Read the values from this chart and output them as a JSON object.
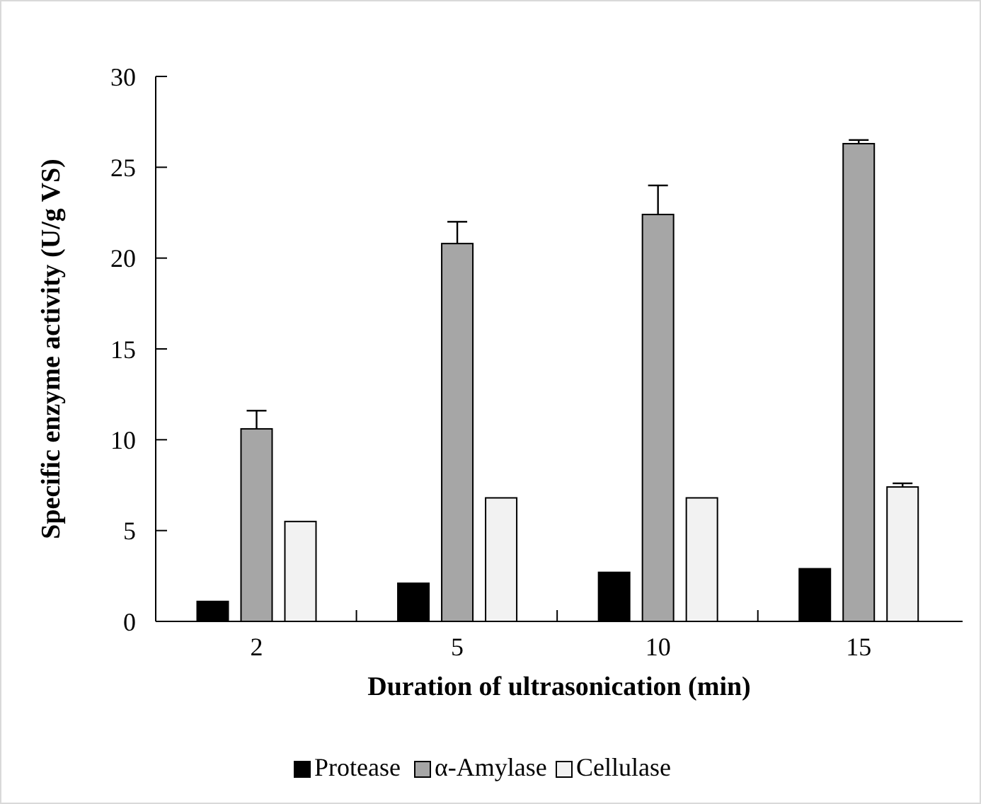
{
  "chart_data": {
    "type": "bar",
    "xlabel": "Duration of ultrasonication (min)",
    "ylabel": "Specific enzyme activity (U/g VS)",
    "categories": [
      "2",
      "5",
      "10",
      "15"
    ],
    "series": [
      {
        "name": "Protease",
        "color": "#000000",
        "values": [
          1.1,
          2.1,
          2.7,
          2.9
        ]
      },
      {
        "name": "α-Amylase",
        "color": "#a6a6a6",
        "values": [
          10.6,
          20.8,
          22.4,
          26.3
        ],
        "errors": [
          [
            10.6,
            11.6
          ],
          [
            20.8,
            22.0
          ],
          [
            22.4,
            24.0
          ],
          [
            26.3,
            26.5
          ]
        ]
      },
      {
        "name": "Cellulase",
        "color": "#f2f2f2",
        "values": [
          5.5,
          6.8,
          6.8,
          7.4
        ],
        "errors": [
          null,
          null,
          null,
          [
            7.4,
            7.6
          ]
        ]
      }
    ],
    "ylim": [
      0,
      30
    ],
    "yticks": [
      0,
      5,
      10,
      15,
      20,
      25,
      30
    ],
    "grid": false,
    "legend": "bottom"
  }
}
